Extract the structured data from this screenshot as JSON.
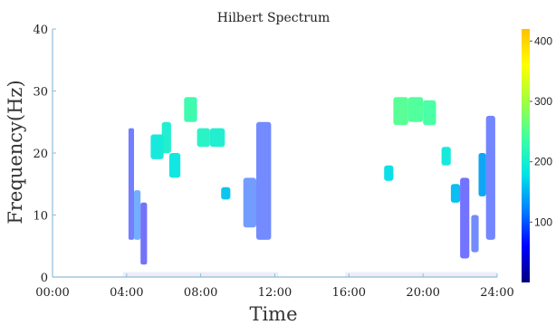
{
  "chart_data": {
    "type": "heatmap",
    "title": "Hilbert Spectrum",
    "xlabel": "Time",
    "ylabel": "Frequency(Hz)",
    "xlim": [
      "00:00",
      "24:00"
    ],
    "x_tick_labels": [
      "00:00",
      "04:00",
      "08:00",
      "12:00",
      "16:00",
      "20:00",
      "24:00"
    ],
    "ylim": [
      0,
      40
    ],
    "y_tick_labels": [
      "0",
      "10",
      "20",
      "30",
      "40"
    ],
    "colorbar": {
      "range": [
        0,
        420
      ],
      "tick_labels": [
        "100",
        "200",
        "300",
        "400"
      ],
      "tick_values": [
        100,
        200,
        300,
        400
      ],
      "colormap": [
        "#000080",
        "#0000ff",
        "#0080ff",
        "#00e5e5",
        "#40ffa0",
        "#a0ff40",
        "#ffff00",
        "#ffc000"
      ]
    },
    "segments": [
      {
        "t_start": 4.1,
        "t_end": 4.4,
        "f_low": 6,
        "f_high": 24,
        "amplitude": 70
      },
      {
        "t_start": 4.4,
        "t_end": 4.75,
        "f_low": 6,
        "f_high": 14,
        "amplitude": 110
      },
      {
        "t_start": 4.75,
        "t_end": 5.1,
        "f_low": 2,
        "f_high": 12,
        "amplitude": 55
      },
      {
        "t_start": 5.3,
        "t_end": 6.0,
        "f_low": 19,
        "f_high": 23,
        "amplitude": 190
      },
      {
        "t_start": 5.9,
        "t_end": 6.4,
        "f_low": 20,
        "f_high": 25,
        "amplitude": 200
      },
      {
        "t_start": 6.3,
        "t_end": 6.9,
        "f_low": 16,
        "f_high": 20,
        "amplitude": 185
      },
      {
        "t_start": 7.1,
        "t_end": 7.8,
        "f_low": 25,
        "f_high": 29,
        "amplitude": 230
      },
      {
        "t_start": 7.8,
        "t_end": 8.5,
        "f_low": 21,
        "f_high": 24,
        "amplitude": 210
      },
      {
        "t_start": 8.5,
        "t_end": 9.3,
        "f_low": 21,
        "f_high": 24,
        "amplitude": 200
      },
      {
        "t_start": 9.1,
        "t_end": 9.6,
        "f_low": 12.5,
        "f_high": 14.5,
        "amplitude": 160
      },
      {
        "t_start": 10.3,
        "t_end": 11.0,
        "f_low": 8,
        "f_high": 16,
        "amplitude": 95
      },
      {
        "t_start": 11.0,
        "t_end": 11.8,
        "f_low": 6,
        "f_high": 25,
        "amplitude": 80
      },
      {
        "t_start": 17.9,
        "t_end": 18.4,
        "f_low": 15.5,
        "f_high": 18,
        "amplitude": 175
      },
      {
        "t_start": 18.4,
        "t_end": 19.2,
        "f_low": 24.5,
        "f_high": 29,
        "amplitude": 250
      },
      {
        "t_start": 19.2,
        "t_end": 20.0,
        "f_low": 25,
        "f_high": 29,
        "amplitude": 245
      },
      {
        "t_start": 20.0,
        "t_end": 20.7,
        "f_low": 24.5,
        "f_high": 28.5,
        "amplitude": 240
      },
      {
        "t_start": 21.0,
        "t_end": 21.5,
        "f_low": 18,
        "f_high": 21,
        "amplitude": 190
      },
      {
        "t_start": 21.5,
        "t_end": 22.0,
        "f_low": 12,
        "f_high": 15,
        "amplitude": 155
      },
      {
        "t_start": 22.0,
        "t_end": 22.5,
        "f_low": 3,
        "f_high": 16,
        "amplitude": 60
      },
      {
        "t_start": 22.6,
        "t_end": 23.0,
        "f_low": 4,
        "f_high": 10,
        "amplitude": 80
      },
      {
        "t_start": 23.0,
        "t_end": 23.4,
        "f_low": 13,
        "f_high": 20,
        "amplitude": 140
      },
      {
        "t_start": 23.4,
        "t_end": 23.9,
        "f_low": 6,
        "f_high": 26,
        "amplitude": 75
      }
    ]
  }
}
